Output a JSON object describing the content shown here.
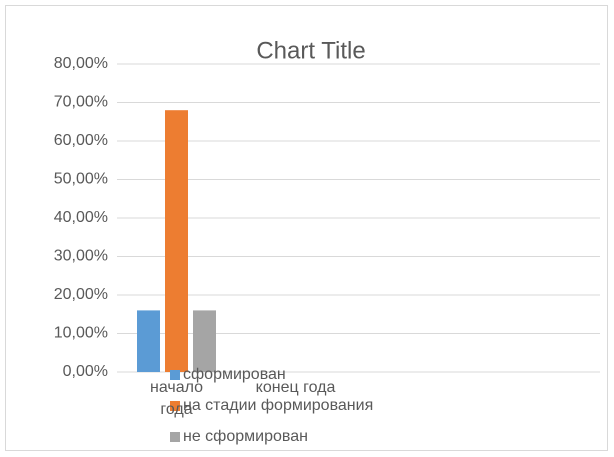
{
  "chart_data": {
    "type": "bar",
    "title": "Chart Title",
    "categories": [
      "начало года",
      "конец года"
    ],
    "series": [
      {
        "name": "сформирован",
        "color": "#5b9bd5",
        "values": [
          16,
          null
        ]
      },
      {
        "name": "на стадии формирования",
        "color": "#ed7d31",
        "values": [
          68,
          null
        ]
      },
      {
        "name": "не сформирован",
        "color": "#a5a5a5",
        "values": [
          16,
          null
        ]
      }
    ],
    "ylim": [
      0,
      80
    ],
    "yticks": [
      {
        "value": 0,
        "label": "0,00%"
      },
      {
        "value": 10,
        "label": "10,00%"
      },
      {
        "value": 20,
        "label": "20,00%"
      },
      {
        "value": 30,
        "label": "30,00%"
      },
      {
        "value": 40,
        "label": "40,00%"
      },
      {
        "value": 50,
        "label": "50,00%"
      },
      {
        "value": 60,
        "label": "60,00%"
      },
      {
        "value": 70,
        "label": "70,00%"
      },
      {
        "value": 80,
        "label": "80,00%"
      }
    ],
    "grid": true,
    "legend": "bottom"
  }
}
